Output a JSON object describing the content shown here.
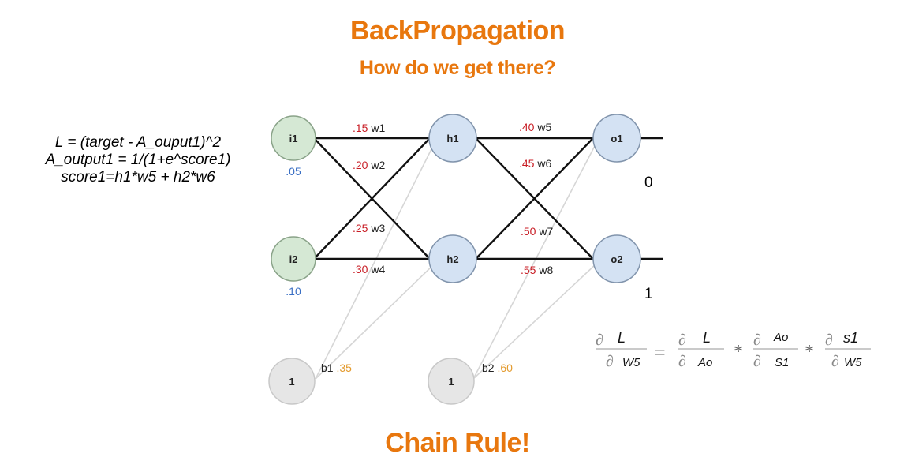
{
  "title": "BackPropagation",
  "subtitle": "How do we get there?",
  "footer": "Chain Rule!",
  "formulas": [
    "L = (target - A_ouput1)^2",
    "A_output1 = 1/(1+e^score1)",
    "score1=h1*w5 + h2*w6"
  ],
  "nodes": {
    "i1": "i1",
    "i2": "i2",
    "h1": "h1",
    "h2": "h2",
    "o1": "o1",
    "o2": "o2",
    "bias1": "1",
    "bias2": "1"
  },
  "inputs": {
    "i1_value": ".05",
    "i2_value": ".10"
  },
  "weights": {
    "w1": {
      "value": ".15",
      "label": "w1"
    },
    "w2": {
      "value": ".20",
      "label": "w2"
    },
    "w3": {
      "value": ".25",
      "label": "w3"
    },
    "w4": {
      "value": ".30",
      "label": "w4"
    },
    "w5": {
      "value": ".40",
      "label": "w5"
    },
    "w6": {
      "value": ".45",
      "label": "w6"
    },
    "w7": {
      "value": ".50",
      "label": "w7"
    },
    "w8": {
      "value": ".55",
      "label": "w8"
    }
  },
  "biases": {
    "b1": {
      "label": "b1",
      "value": ".35"
    },
    "b2": {
      "label": "b2",
      "value": ".60"
    }
  },
  "targets": {
    "o1": "0",
    "o2": "1"
  },
  "chain_rule": {
    "partial": "∂",
    "L": "L",
    "W5": "W5",
    "Ao": "Ao",
    "S1": "S1",
    "s1": "s1",
    "equals": "=",
    "times": "*"
  }
}
